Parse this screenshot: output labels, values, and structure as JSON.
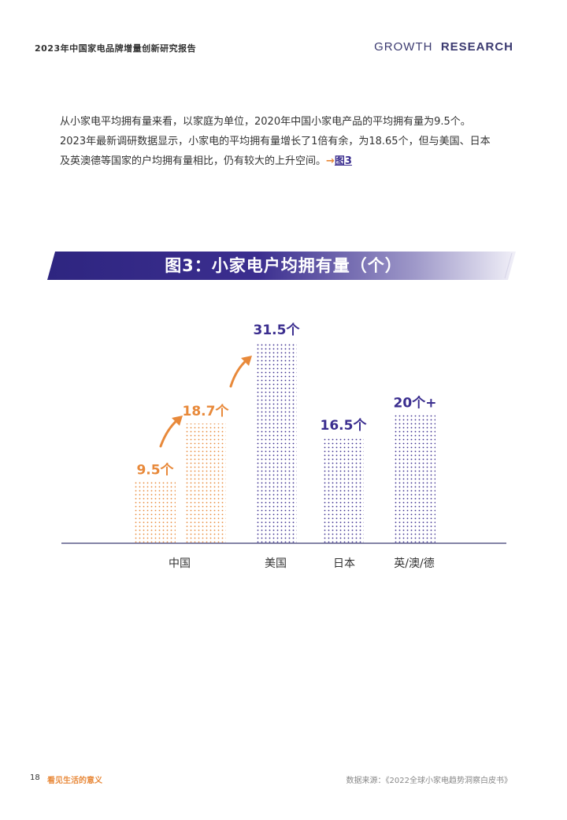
{
  "header": {
    "title": "2023年中国家电品牌增量创新研究报告",
    "brand_a": "GROWTH",
    "brand_b": "RESEARCH"
  },
  "intro": {
    "line1": "从小家电平均拥有量来看，以家庭为单位，2020年中国小家电产品的平均拥有量为9.5个。",
    "line2": "2023年最新调研数据显示，小家电的平均拥有量增长了1倍有余，为18.65个，但与美国、日本",
    "line3": "及英澳德等国家的户均拥有量相比，仍有较大的上升空间。",
    "arrow": "→",
    "link": "图3"
  },
  "figure_title": "图3：小家电户均拥有量（个）",
  "colors": {
    "purple": "#3b2e8f",
    "orange": "#e8893a",
    "axis": "#3b3a70"
  },
  "chart_data": {
    "type": "bar",
    "title": "图3：小家电户均拥有量（个）",
    "categories": [
      "中国",
      "美国",
      "日本",
      "英/澳/德"
    ],
    "bars": [
      {
        "category": "中国",
        "value": 9.5,
        "label": "9.5个",
        "color": "#e8893a"
      },
      {
        "category": "中国",
        "value": 18.7,
        "label": "18.7个",
        "color": "#e8893a"
      },
      {
        "category": "美国",
        "value": 31.5,
        "label": "31.5个",
        "color": "#3b2e8f"
      },
      {
        "category": "日本",
        "value": 16.5,
        "label": "16.5个",
        "color": "#3b2e8f"
      },
      {
        "category": "英/澳/德",
        "value": 20,
        "label": "20个+",
        "color": "#3b2e8f"
      }
    ],
    "ylim": [
      0,
      31.5
    ],
    "grid": false,
    "legend": "none"
  },
  "footer": {
    "page": "18",
    "tag": "看见生活的意义",
    "source": "数据来源：《2022全球小家电趋势洞察白皮书》"
  }
}
